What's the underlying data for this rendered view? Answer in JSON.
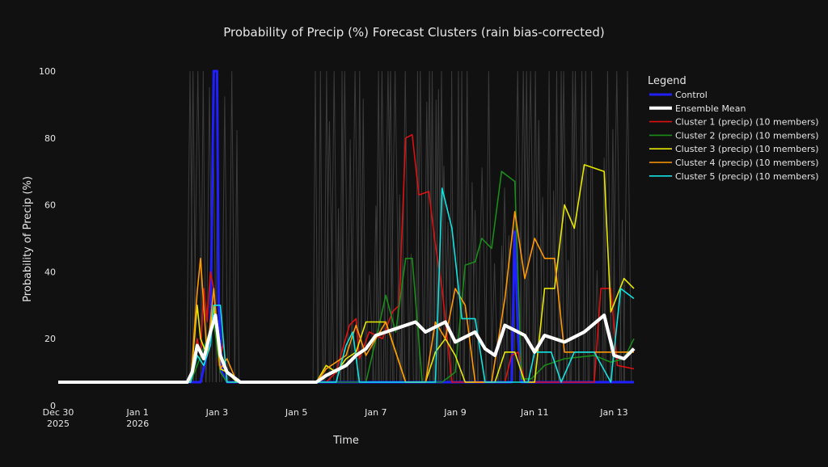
{
  "colors": {
    "background": "#111111",
    "text": "#e6e6e6",
    "grid": "#2e2e2e",
    "member": "#4a4a4a"
  },
  "chart_data": {
    "type": "line",
    "title": "Probability of Precip (%) Forecast Clusters (rain bias-corrected)",
    "xlabel": "Time",
    "ylabel": "Probability of Precip (%)",
    "xlim": [
      "2025-12-30T00:00",
      "2026-01-13T12:00"
    ],
    "ylim": [
      0,
      100
    ],
    "grid": false,
    "legend_title": "Legend",
    "legend_placement": "right",
    "x_ticks": [
      {
        "value": "2025-12-30T00:00",
        "line1": "Dec 30",
        "line2": "2025"
      },
      {
        "value": "2026-01-01T00:00",
        "line1": "Jan 1",
        "line2": "2026"
      },
      {
        "value": "2026-01-03T00:00",
        "line1": "Jan 3",
        "line2": ""
      },
      {
        "value": "2026-01-05T00:00",
        "line1": "Jan 5",
        "line2": ""
      },
      {
        "value": "2026-01-07T00:00",
        "line1": "Jan 7",
        "line2": ""
      },
      {
        "value": "2026-01-09T00:00",
        "line1": "Jan 9",
        "line2": ""
      },
      {
        "value": "2026-01-11T00:00",
        "line1": "Jan 11",
        "line2": ""
      },
      {
        "value": "2026-01-13T00:00",
        "line1": "Jan 13",
        "line2": ""
      }
    ],
    "y_ticks": [
      {
        "value": 0,
        "label": "0"
      },
      {
        "value": 20,
        "label": "20"
      },
      {
        "value": 40,
        "label": "40"
      },
      {
        "value": 60,
        "label": "60"
      },
      {
        "value": 80,
        "label": "80"
      },
      {
        "value": 100,
        "label": "100"
      }
    ],
    "series": [
      {
        "name": "Control",
        "color": "#1f1fff",
        "width": 3,
        "points": [
          [
            "2025-12-30T00:00",
            7
          ],
          [
            "2026-01-02T14:00",
            7
          ],
          [
            "2026-01-02T20:00",
            20
          ],
          [
            "2026-01-02T22:00",
            100
          ],
          [
            "2026-01-03T00:00",
            100
          ],
          [
            "2026-01-03T01:00",
            30
          ],
          [
            "2026-01-03T03:00",
            10
          ],
          [
            "2026-01-03T06:00",
            7
          ],
          [
            "2026-01-10T10:00",
            7
          ],
          [
            "2026-01-10T12:00",
            52
          ],
          [
            "2026-01-10T14:00",
            20
          ],
          [
            "2026-01-10T16:00",
            7
          ],
          [
            "2026-01-13T12:00",
            7
          ]
        ]
      },
      {
        "name": "Ensemble Mean",
        "color": "#ffffff",
        "width": 4,
        "points": [
          [
            "2025-12-30T00:00",
            7
          ],
          [
            "2026-01-02T06:00",
            7
          ],
          [
            "2026-01-02T09:00",
            10
          ],
          [
            "2026-01-02T12:00",
            18
          ],
          [
            "2026-01-02T16:00",
            14
          ],
          [
            "2026-01-02T20:00",
            22
          ],
          [
            "2026-01-02T23:00",
            27
          ],
          [
            "2026-01-03T02:00",
            15
          ],
          [
            "2026-01-03T06:00",
            10
          ],
          [
            "2026-01-03T14:00",
            7
          ],
          [
            "2026-01-05T12:00",
            7
          ],
          [
            "2026-01-05T18:00",
            9
          ],
          [
            "2026-01-06T06:00",
            12
          ],
          [
            "2026-01-06T12:00",
            15
          ],
          [
            "2026-01-06T18:00",
            17
          ],
          [
            "2026-01-07T00:00",
            21
          ],
          [
            "2026-01-07T12:00",
            23
          ],
          [
            "2026-01-08T00:00",
            25
          ],
          [
            "2026-01-08T06:00",
            22
          ],
          [
            "2026-01-08T18:00",
            25
          ],
          [
            "2026-01-09T00:00",
            19
          ],
          [
            "2026-01-09T12:00",
            22
          ],
          [
            "2026-01-09T18:00",
            17
          ],
          [
            "2026-01-10T00:00",
            15
          ],
          [
            "2026-01-10T06:00",
            24
          ],
          [
            "2026-01-10T18:00",
            21
          ],
          [
            "2026-01-11T00:00",
            16
          ],
          [
            "2026-01-11T06:00",
            21
          ],
          [
            "2026-01-11T18:00",
            19
          ],
          [
            "2026-01-12T06:00",
            22
          ],
          [
            "2026-01-12T18:00",
            27
          ],
          [
            "2026-01-13T00:00",
            15
          ],
          [
            "2026-01-13T06:00",
            14
          ],
          [
            "2026-01-13T12:00",
            17
          ]
        ]
      },
      {
        "name": "Cluster 1 (precip) (10 members)",
        "color": "#dd1111",
        "width": 1.6,
        "points": [
          [
            "2025-12-30T00:00",
            7
          ],
          [
            "2026-01-02T08:00",
            7
          ],
          [
            "2026-01-02T10:00",
            10
          ],
          [
            "2026-01-02T12:00",
            20
          ],
          [
            "2026-01-02T14:00",
            15
          ],
          [
            "2026-01-02T16:00",
            35
          ],
          [
            "2026-01-02T18:00",
            25
          ],
          [
            "2026-01-02T20:00",
            40
          ],
          [
            "2026-01-02T22:00",
            35
          ],
          [
            "2026-01-03T01:00",
            12
          ],
          [
            "2026-01-03T04:00",
            19
          ],
          [
            "2026-01-03T06:00",
            7
          ],
          [
            "2026-01-05T18:00",
            7
          ],
          [
            "2026-01-06T00:00",
            10
          ],
          [
            "2026-01-06T08:00",
            24
          ],
          [
            "2026-01-06T12:00",
            26
          ],
          [
            "2026-01-06T14:00",
            14
          ],
          [
            "2026-01-06T20:00",
            22
          ],
          [
            "2026-01-07T04:00",
            20
          ],
          [
            "2026-01-07T10:00",
            28
          ],
          [
            "2026-01-07T14:00",
            30
          ],
          [
            "2026-01-07T18:00",
            80
          ],
          [
            "2026-01-07T22:00",
            81
          ],
          [
            "2026-01-08T02:00",
            63
          ],
          [
            "2026-01-08T08:00",
            64
          ],
          [
            "2026-01-08T12:00",
            48
          ],
          [
            "2026-01-08T16:00",
            35
          ],
          [
            "2026-01-08T22:00",
            7
          ],
          [
            "2026-01-10T06:00",
            7
          ],
          [
            "2026-01-10T10:00",
            15
          ],
          [
            "2026-01-10T14:00",
            16
          ],
          [
            "2026-01-10T18:00",
            7
          ],
          [
            "2026-01-12T12:00",
            7
          ],
          [
            "2026-01-12T16:00",
            35
          ],
          [
            "2026-01-12T22:00",
            35
          ],
          [
            "2026-01-13T02:00",
            12
          ],
          [
            "2026-01-13T12:00",
            11
          ]
        ]
      },
      {
        "name": "Cluster 2 (precip) (10 members)",
        "color": "#1a8c1a",
        "width": 1.6,
        "points": [
          [
            "2025-12-30T00:00",
            7
          ],
          [
            "2026-01-02T08:00",
            7
          ],
          [
            "2026-01-02T12:00",
            12
          ],
          [
            "2026-01-02T18:00",
            20
          ],
          [
            "2026-01-02T22:00",
            25
          ],
          [
            "2026-01-03T02:00",
            10
          ],
          [
            "2026-01-03T06:00",
            7
          ],
          [
            "2026-01-06T18:00",
            7
          ],
          [
            "2026-01-07T02:00",
            24
          ],
          [
            "2026-01-07T06:00",
            33
          ],
          [
            "2026-01-07T12:00",
            22
          ],
          [
            "2026-01-07T18:00",
            44
          ],
          [
            "2026-01-07T22:00",
            44
          ],
          [
            "2026-01-08T04:00",
            7
          ],
          [
            "2026-01-08T16:00",
            7
          ],
          [
            "2026-01-09T00:00",
            10
          ],
          [
            "2026-01-09T06:00",
            42
          ],
          [
            "2026-01-09T12:00",
            43
          ],
          [
            "2026-01-09T16:00",
            50
          ],
          [
            "2026-01-09T22:00",
            47
          ],
          [
            "2026-01-10T04:00",
            70
          ],
          [
            "2026-01-10T12:00",
            67
          ],
          [
            "2026-01-10T16:00",
            8
          ],
          [
            "2026-01-10T22:00",
            8
          ],
          [
            "2026-01-11T06:00",
            12
          ],
          [
            "2026-01-11T18:00",
            14
          ],
          [
            "2026-01-12T12:00",
            15
          ],
          [
            "2026-01-12T22:00",
            13
          ],
          [
            "2026-01-13T06:00",
            14
          ],
          [
            "2026-01-13T12:00",
            20
          ]
        ]
      },
      {
        "name": "Cluster 3 (precip) (10 members)",
        "color": "#e8e800",
        "width": 1.6,
        "points": [
          [
            "2025-12-30T00:00",
            7
          ],
          [
            "2026-01-02T08:00",
            7
          ],
          [
            "2026-01-02T12:00",
            30
          ],
          [
            "2026-01-02T14:00",
            20
          ],
          [
            "2026-01-02T18:00",
            15
          ],
          [
            "2026-01-02T22:00",
            30
          ],
          [
            "2026-01-03T02:00",
            11
          ],
          [
            "2026-01-03T06:00",
            10
          ],
          [
            "2026-01-03T12:00",
            7
          ],
          [
            "2026-01-05T12:00",
            7
          ],
          [
            "2026-01-05T18:00",
            12
          ],
          [
            "2026-01-06T00:00",
            10
          ],
          [
            "2026-01-06T06:00",
            14
          ],
          [
            "2026-01-06T12:00",
            16
          ],
          [
            "2026-01-06T18:00",
            25
          ],
          [
            "2026-01-07T06:00",
            25
          ],
          [
            "2026-01-07T12:00",
            16
          ],
          [
            "2026-01-07T18:00",
            7
          ],
          [
            "2026-01-08T06:00",
            7
          ],
          [
            "2026-01-08T12:00",
            16
          ],
          [
            "2026-01-08T18:00",
            20
          ],
          [
            "2026-01-09T00:00",
            15
          ],
          [
            "2026-01-09T06:00",
            7
          ],
          [
            "2026-01-10T00:00",
            7
          ],
          [
            "2026-01-10T06:00",
            16
          ],
          [
            "2026-01-10T12:00",
            16
          ],
          [
            "2026-01-10T18:00",
            7
          ],
          [
            "2026-01-11T00:00",
            7
          ],
          [
            "2026-01-11T06:00",
            35
          ],
          [
            "2026-01-11T12:00",
            35
          ],
          [
            "2026-01-11T18:00",
            60
          ],
          [
            "2026-01-12T00:00",
            53
          ],
          [
            "2026-01-12T06:00",
            72
          ],
          [
            "2026-01-12T18:00",
            70
          ],
          [
            "2026-01-12T22:00",
            28
          ],
          [
            "2026-01-13T06:00",
            38
          ],
          [
            "2026-01-13T12:00",
            35
          ]
        ]
      },
      {
        "name": "Cluster 4 (precip) (10 members)",
        "color": "#ff9900",
        "width": 1.6,
        "points": [
          [
            "2025-12-30T00:00",
            7
          ],
          [
            "2026-01-02T08:00",
            7
          ],
          [
            "2026-01-02T12:00",
            34
          ],
          [
            "2026-01-02T14:00",
            44
          ],
          [
            "2026-01-02T18:00",
            15
          ],
          [
            "2026-01-02T22:00",
            35
          ],
          [
            "2026-01-03T02:00",
            11
          ],
          [
            "2026-01-03T06:00",
            14
          ],
          [
            "2026-01-03T12:00",
            7
          ],
          [
            "2026-01-05T12:00",
            7
          ],
          [
            "2026-01-05T18:00",
            11
          ],
          [
            "2026-01-06T06:00",
            15
          ],
          [
            "2026-01-06T12:00",
            24
          ],
          [
            "2026-01-06T18:00",
            15
          ],
          [
            "2026-01-07T06:00",
            25
          ],
          [
            "2026-01-07T12:00",
            16
          ],
          [
            "2026-01-07T18:00",
            7
          ],
          [
            "2026-01-08T06:00",
            7
          ],
          [
            "2026-01-08T12:00",
            25
          ],
          [
            "2026-01-08T18:00",
            20
          ],
          [
            "2026-01-09T00:00",
            35
          ],
          [
            "2026-01-09T06:00",
            30
          ],
          [
            "2026-01-09T12:00",
            7
          ],
          [
            "2026-01-09T22:00",
            7
          ],
          [
            "2026-01-10T06:00",
            32
          ],
          [
            "2026-01-10T12:00",
            58
          ],
          [
            "2026-01-10T18:00",
            38
          ],
          [
            "2026-01-11T00:00",
            50
          ],
          [
            "2026-01-11T06:00",
            44
          ],
          [
            "2026-01-11T12:00",
            44
          ],
          [
            "2026-01-11T18:00",
            16
          ],
          [
            "2026-01-12T06:00",
            16
          ],
          [
            "2026-01-12T12:00",
            16
          ],
          [
            "2026-01-12T22:00",
            16
          ],
          [
            "2026-01-13T12:00",
            16
          ]
        ]
      },
      {
        "name": "Cluster 5 (precip) (10 members)",
        "color": "#11e3e3",
        "width": 1.6,
        "points": [
          [
            "2025-12-30T00:00",
            7
          ],
          [
            "2026-01-02T08:00",
            7
          ],
          [
            "2026-01-02T12:00",
            15
          ],
          [
            "2026-01-02T16:00",
            12
          ],
          [
            "2026-01-02T20:00",
            18
          ],
          [
            "2026-01-02T22:00",
            30
          ],
          [
            "2026-01-03T02:00",
            30
          ],
          [
            "2026-01-03T06:00",
            7
          ],
          [
            "2026-01-05T12:00",
            7
          ],
          [
            "2026-01-06T00:00",
            7
          ],
          [
            "2026-01-06T06:00",
            18
          ],
          [
            "2026-01-06T10:00",
            22
          ],
          [
            "2026-01-06T14:00",
            7
          ],
          [
            "2026-01-08T12:00",
            7
          ],
          [
            "2026-01-08T16:00",
            65
          ],
          [
            "2026-01-08T22:00",
            53
          ],
          [
            "2026-01-09T04:00",
            26
          ],
          [
            "2026-01-09T12:00",
            26
          ],
          [
            "2026-01-09T18:00",
            7
          ],
          [
            "2026-01-10T20:00",
            7
          ],
          [
            "2026-01-11T00:00",
            16
          ],
          [
            "2026-01-11T10:00",
            16
          ],
          [
            "2026-01-11T16:00",
            7
          ],
          [
            "2026-01-12T00:00",
            16
          ],
          [
            "2026-01-12T12:00",
            16
          ],
          [
            "2026-01-12T22:00",
            7
          ],
          [
            "2026-01-13T04:00",
            35
          ],
          [
            "2026-01-13T12:00",
            32
          ]
        ]
      }
    ]
  }
}
